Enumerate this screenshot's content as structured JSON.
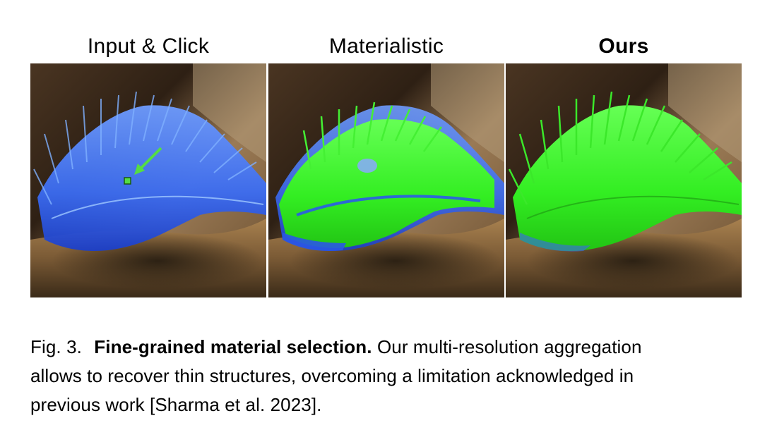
{
  "figure": {
    "panels": [
      {
        "label": "Input & Click",
        "bold": false
      },
      {
        "label": "Materialistic",
        "bold": false
      },
      {
        "label": "Ours",
        "bold": true
      }
    ],
    "caption": {
      "fig_num": "Fig. 3.",
      "title": "Fine-grained material selection.",
      "line1_rest": "Our multi-resolution aggregation",
      "line2": "allows to recover thin structures, overcoming a limitation acknowledged in",
      "line3": "previous work [Sharma et al. 2023]."
    },
    "colors": {
      "background_dark": "#3a2a1a",
      "fabric": "#8a6a40",
      "feather_blue": "#3a6ff0",
      "selection_green": "#33ee22",
      "click_marker": "#55dd44"
    }
  }
}
